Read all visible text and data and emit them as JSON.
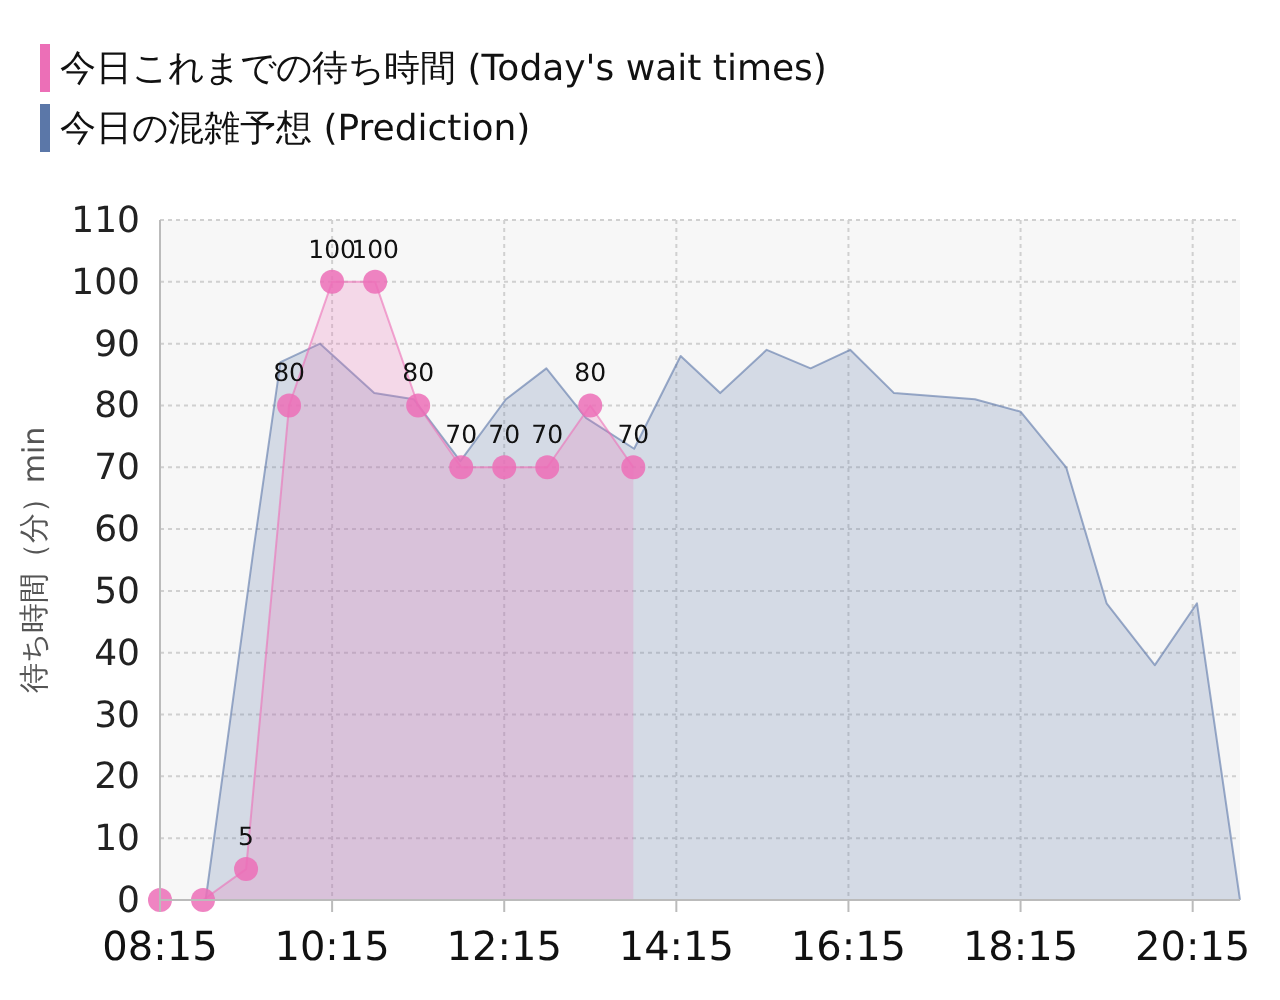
{
  "chart_data": {
    "type": "area",
    "ylabel": "待ち時間（分）min",
    "legend": "top",
    "grid": true,
    "xlim": [
      8.25,
      20.8
    ],
    "ylim": [
      0,
      110
    ],
    "xticks": [
      {
        "value": 8.25,
        "label": "08:15"
      },
      {
        "value": 10.25,
        "label": "10:15"
      },
      {
        "value": 12.25,
        "label": "12:15"
      },
      {
        "value": 14.25,
        "label": "14:15"
      },
      {
        "value": 16.25,
        "label": "16:15"
      },
      {
        "value": 18.25,
        "label": "18:15"
      },
      {
        "value": 20.25,
        "label": "20:15"
      }
    ],
    "yticks": [
      0,
      10,
      20,
      30,
      40,
      50,
      60,
      70,
      80,
      90,
      100,
      110
    ],
    "series": [
      {
        "name": "今日の混雑予想 (Prediction)",
        "color": "#5b77a8",
        "marker": "none",
        "x": [
          8.25,
          8.78,
          9.34,
          9.65,
          10.11,
          10.74,
          11.2,
          11.74,
          12.27,
          12.74,
          13.2,
          13.76,
          14.3,
          14.76,
          15.3,
          15.81,
          16.27,
          16.78,
          17.72,
          18.25,
          18.78,
          19.25,
          19.81,
          20.3,
          20.8
        ],
        "values": [
          0,
          0,
          57,
          87,
          90,
          82,
          81,
          71,
          81,
          86,
          78,
          73,
          88,
          82,
          89,
          86,
          89,
          82,
          81,
          79,
          70,
          48,
          38,
          48,
          0
        ]
      },
      {
        "name": "今日これまでの待ち時間 (Today's wait times)",
        "color": "#ec6fb7",
        "marker": "circle",
        "x": [
          8.25,
          8.75,
          9.25,
          9.75,
          10.25,
          10.75,
          11.25,
          11.75,
          12.25,
          12.75,
          13.25,
          13.75
        ],
        "values": [
          0,
          0,
          5,
          80,
          100,
          100,
          80,
          70,
          70,
          70,
          80,
          70
        ],
        "value_labels": [
          null,
          null,
          "5",
          "80",
          "100",
          "100",
          "80",
          "70",
          "70",
          "70",
          "80",
          "70"
        ]
      }
    ]
  }
}
